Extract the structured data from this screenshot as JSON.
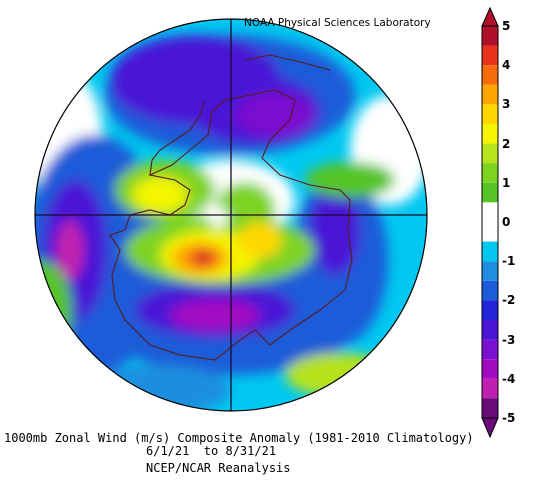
{
  "credit": "NOAA Physical Sciences Laboratory",
  "caption": {
    "line1": "1000mb Zonal Wind (m/s) Composite Anomaly (1981-2010 Climatology)",
    "line2": "6/1/21  to 8/31/21",
    "line3": "NCEP/NCAR Reanalysis"
  },
  "colorbar": {
    "units": "m/s",
    "range": [
      -5,
      5
    ],
    "labels": [
      "5",
      "4",
      "3",
      "2",
      "1",
      "0",
      "-1",
      "-2",
      "-3",
      "-4",
      "-5"
    ],
    "bins": [
      {
        "from": 4.5,
        "to": 5,
        "color": "#b0102a"
      },
      {
        "from": 4,
        "to": 4.5,
        "color": "#e8321c"
      },
      {
        "from": 3.5,
        "to": 4,
        "color": "#f56a0a"
      },
      {
        "from": 3,
        "to": 3.5,
        "color": "#ffa500"
      },
      {
        "from": 2.5,
        "to": 3,
        "color": "#ffd700"
      },
      {
        "from": 2,
        "to": 2.5,
        "color": "#f5f500"
      },
      {
        "from": 1.5,
        "to": 2,
        "color": "#b6e21e"
      },
      {
        "from": 1,
        "to": 1.5,
        "color": "#7ed321"
      },
      {
        "from": 0.5,
        "to": 1,
        "color": "#55c425"
      },
      {
        "from": 0,
        "to": 0.5,
        "color": "#ffffff"
      },
      {
        "from": -0.5,
        "to": 0,
        "color": "#ffffff"
      },
      {
        "from": -1,
        "to": -0.5,
        "color": "#00c8f0"
      },
      {
        "from": -1.5,
        "to": -1,
        "color": "#1e8ee0"
      },
      {
        "from": -2,
        "to": -1.5,
        "color": "#1c5cd8"
      },
      {
        "from": -2.5,
        "to": -2,
        "color": "#2424d8"
      },
      {
        "from": -3,
        "to": -2.5,
        "color": "#4a16d6"
      },
      {
        "from": -3.5,
        "to": -3,
        "color": "#7a10d0"
      },
      {
        "from": -4,
        "to": -3.5,
        "color": "#a20ac2"
      },
      {
        "from": -4.5,
        "to": -4,
        "color": "#c020b0"
      },
      {
        "from": -5,
        "to": -4.5,
        "color": "#6a0a7a"
      }
    ]
  },
  "legend_colors": {
    "strong_negative": "#5a0f7a",
    "negative": "#2424d8",
    "weak_negative": "#00c8f0",
    "neutral": "#ffffff",
    "weak_positive": "#7ed321",
    "positive": "#ffd700",
    "strong_positive": "#e8321c"
  },
  "map": {
    "projection": "polar stereographic, south pole",
    "region": "Antarctica and Southern Ocean"
  }
}
